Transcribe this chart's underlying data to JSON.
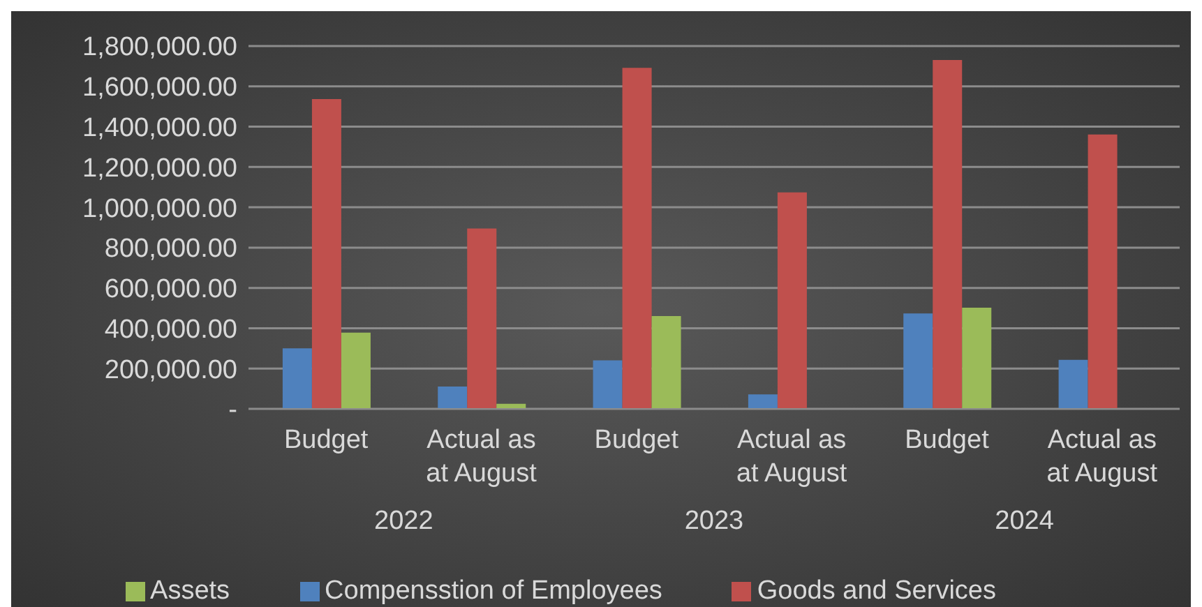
{
  "chart_data": {
    "type": "bar",
    "categories": [
      "Budget",
      "Actual as at August",
      "Budget",
      "Actual as at August",
      "Budget",
      "Actual as at August"
    ],
    "annotations": [
      "2022",
      "2023",
      "2024"
    ],
    "series": [
      {
        "name": "Compensstion of Employees",
        "color": "#4f81bd",
        "values": [
          300000,
          111000,
          241000,
          72000,
          473000,
          243000
        ]
      },
      {
        "name": "Goods and Services",
        "color": "#c0504d",
        "values": [
          1537000,
          895000,
          1692000,
          1074000,
          1731000,
          1361000
        ]
      },
      {
        "name": "Assets",
        "color": "#9bbb59",
        "values": [
          378000,
          25000,
          460000,
          3000,
          502000,
          3000
        ]
      }
    ],
    "ylim": [
      0,
      1800000
    ],
    "yticks": [
      {
        "value": 0,
        "label": "-"
      },
      {
        "value": 200000,
        "label": "200,000.00"
      },
      {
        "value": 400000,
        "label": "400,000.00"
      },
      {
        "value": 600000,
        "label": "600,000.00"
      },
      {
        "value": 800000,
        "label": "800,000.00"
      },
      {
        "value": 1000000,
        "label": "1,000,000.00"
      },
      {
        "value": 1200000,
        "label": "1,200,000.00"
      },
      {
        "value": 1400000,
        "label": "1,400,000.00"
      },
      {
        "value": 1600000,
        "label": "1,600,000.00"
      },
      {
        "value": 1800000,
        "label": "1,800,000.00"
      }
    ],
    "grid": "y",
    "legend": "bottom"
  }
}
